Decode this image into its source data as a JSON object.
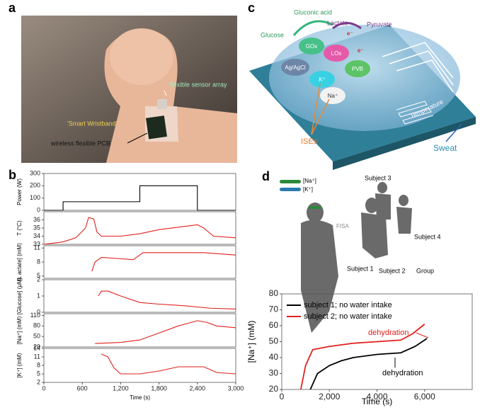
{
  "figure": {
    "a": {
      "label": "a",
      "sensor": "flexible sensor array",
      "wristband": "'Smart Wristband'",
      "pcb": "wireless flexible PCB"
    },
    "b": {
      "label": "b"
    },
    "c": {
      "label": "c",
      "glucose": "Glucose",
      "gluconic": "Gluconic acid",
      "lactate": "Lactate",
      "pyruvate": "Pyruvate",
      "gox": "GOx",
      "lox": "LOx",
      "agcl": "Ag/AgCl",
      "k": "K⁺",
      "pvb": "PVB",
      "na": "Na⁺",
      "ises": "ISEs",
      "temperature": "Temperature",
      "sweat": "Sweat",
      "e1": "e⁻",
      "e2": "e⁻"
    },
    "d": {
      "label": "d",
      "na": "[Na⁺]",
      "k": "[K⁺]",
      "fisa": "FISA",
      "s1": "Subject 1",
      "s2": "Subject 2",
      "s3": "Subject 3",
      "s4": "Subject 4",
      "group": "Group"
    }
  },
  "chart_data": [
    {
      "type": "line",
      "ylabel": "Power (W)",
      "xlim": [
        0,
        3000
      ],
      "ylim": [
        0,
        300
      ],
      "yticks": [
        0,
        100,
        200,
        300
      ],
      "x": [
        0,
        300,
        300,
        1500,
        1500,
        2400,
        2400,
        3000
      ],
      "series": [
        {
          "color": "#000000",
          "values": [
            0,
            0,
            70,
            70,
            200,
            200,
            0,
            0
          ]
        }
      ]
    },
    {
      "type": "line",
      "ylabel": "T (°C)",
      "xlim": [
        0,
        3000
      ],
      "ylim": [
        33,
        37
      ],
      "yticks": [
        33,
        34,
        35,
        36
      ],
      "x": [
        0,
        300,
        500,
        650,
        700,
        780,
        830,
        900,
        1200,
        1500,
        1800,
        2200,
        2400,
        2500,
        2650,
        3000
      ],
      "series": [
        {
          "color": "#e0201b",
          "values": [
            33,
            33.3,
            33.8,
            35,
            36.3,
            36.1,
            34.5,
            34,
            34,
            34.3,
            34.8,
            35.2,
            35.4,
            35,
            34,
            33.8
          ]
        }
      ]
    },
    {
      "type": "line",
      "ylabel": "[L actate] (mM)",
      "xlim": [
        0,
        3000
      ],
      "ylim": [
        4.5,
        11.5
      ],
      "yticks": [
        5,
        8,
        11
      ],
      "x": [
        750,
        800,
        900,
        1100,
        1400,
        1550,
        2000,
        2500,
        3000
      ],
      "series": [
        {
          "color": "#e0201b",
          "values": [
            6,
            8,
            9,
            8.8,
            8.5,
            10,
            10,
            10,
            9.5
          ]
        }
      ]
    },
    {
      "type": "line",
      "ylabel": "[Glucose] (μM)",
      "xlim": [
        0,
        3000
      ],
      "ylim": [
        0,
        2
      ],
      "yticks": [
        0,
        1,
        2
      ],
      "x": [
        850,
        900,
        1000,
        1200,
        1500,
        1800,
        2200,
        2600,
        3000
      ],
      "series": [
        {
          "color": "#e0201b",
          "values": [
            1,
            1.3,
            1.3,
            1,
            0.6,
            0.5,
            0.4,
            0.25,
            0.2
          ]
        }
      ]
    },
    {
      "type": "line",
      "ylabel": "[Na⁺] (mM)",
      "xlim": [
        0,
        3000
      ],
      "ylim": [
        20,
        115
      ],
      "yticks": [
        20,
        50,
        80,
        110
      ],
      "x": [
        800,
        1200,
        1500,
        1800,
        2100,
        2400,
        2550,
        2700,
        3000
      ],
      "series": [
        {
          "color": "#e0201b",
          "values": [
            30,
            33,
            40,
            60,
            80,
            95,
            90,
            80,
            75
          ]
        }
      ]
    },
    {
      "type": "line",
      "ylabel": "[K⁺] (mM)",
      "xlabel": "Time (s)",
      "xlim": [
        0,
        3000
      ],
      "xticks": [
        0,
        600,
        {
          "value": 1200,
          "label": "1,200"
        },
        {
          "value": 1800,
          "label": "1,800"
        },
        {
          "value": 2400,
          "label": "2,400"
        },
        {
          "value": 3000,
          "label": "3,000"
        }
      ],
      "ylim": [
        2,
        14
      ],
      "yticks": [
        2,
        5,
        8,
        11,
        14
      ],
      "x": [
        900,
        1000,
        1100,
        1200,
        1500,
        1800,
        2100,
        2500,
        2700,
        3000
      ],
      "series": [
        {
          "color": "#e0201b",
          "values": [
            12,
            11,
            7,
            5,
            5,
            6,
            7.5,
            7.5,
            5.5,
            5
          ]
        }
      ]
    },
    {
      "type": "line",
      "ylabel": "[Na⁺] (mM)",
      "xlabel": "Time (s)",
      "xlim": [
        0,
        8000
      ],
      "xticks": [
        0,
        {
          "value": 2000,
          "label": "2,000"
        },
        {
          "value": 4000,
          "label": "4,000"
        },
        {
          "value": 6000,
          "label": "6,000"
        }
      ],
      "ylim": [
        20,
        80
      ],
      "yticks": [
        20,
        30,
        40,
        50,
        60,
        70,
        80
      ],
      "series": [
        {
          "name": "subject 1; no water intake",
          "color": "#000000",
          "x": [
            1200,
            1500,
            2000,
            2500,
            3000,
            4000,
            5000,
            5600,
            6100
          ],
          "values": [
            20,
            30,
            35,
            38,
            40,
            42,
            43,
            47,
            52
          ]
        },
        {
          "name": "subject 2; no water intake",
          "color": "#e0201b",
          "x": [
            800,
            1000,
            1300,
            2000,
            3000,
            4000,
            5000,
            5500,
            6000
          ],
          "values": [
            20,
            35,
            45,
            47,
            49,
            50,
            51,
            55,
            61
          ]
        }
      ],
      "annotations": [
        "dehydration",
        "dehydration"
      ]
    }
  ]
}
